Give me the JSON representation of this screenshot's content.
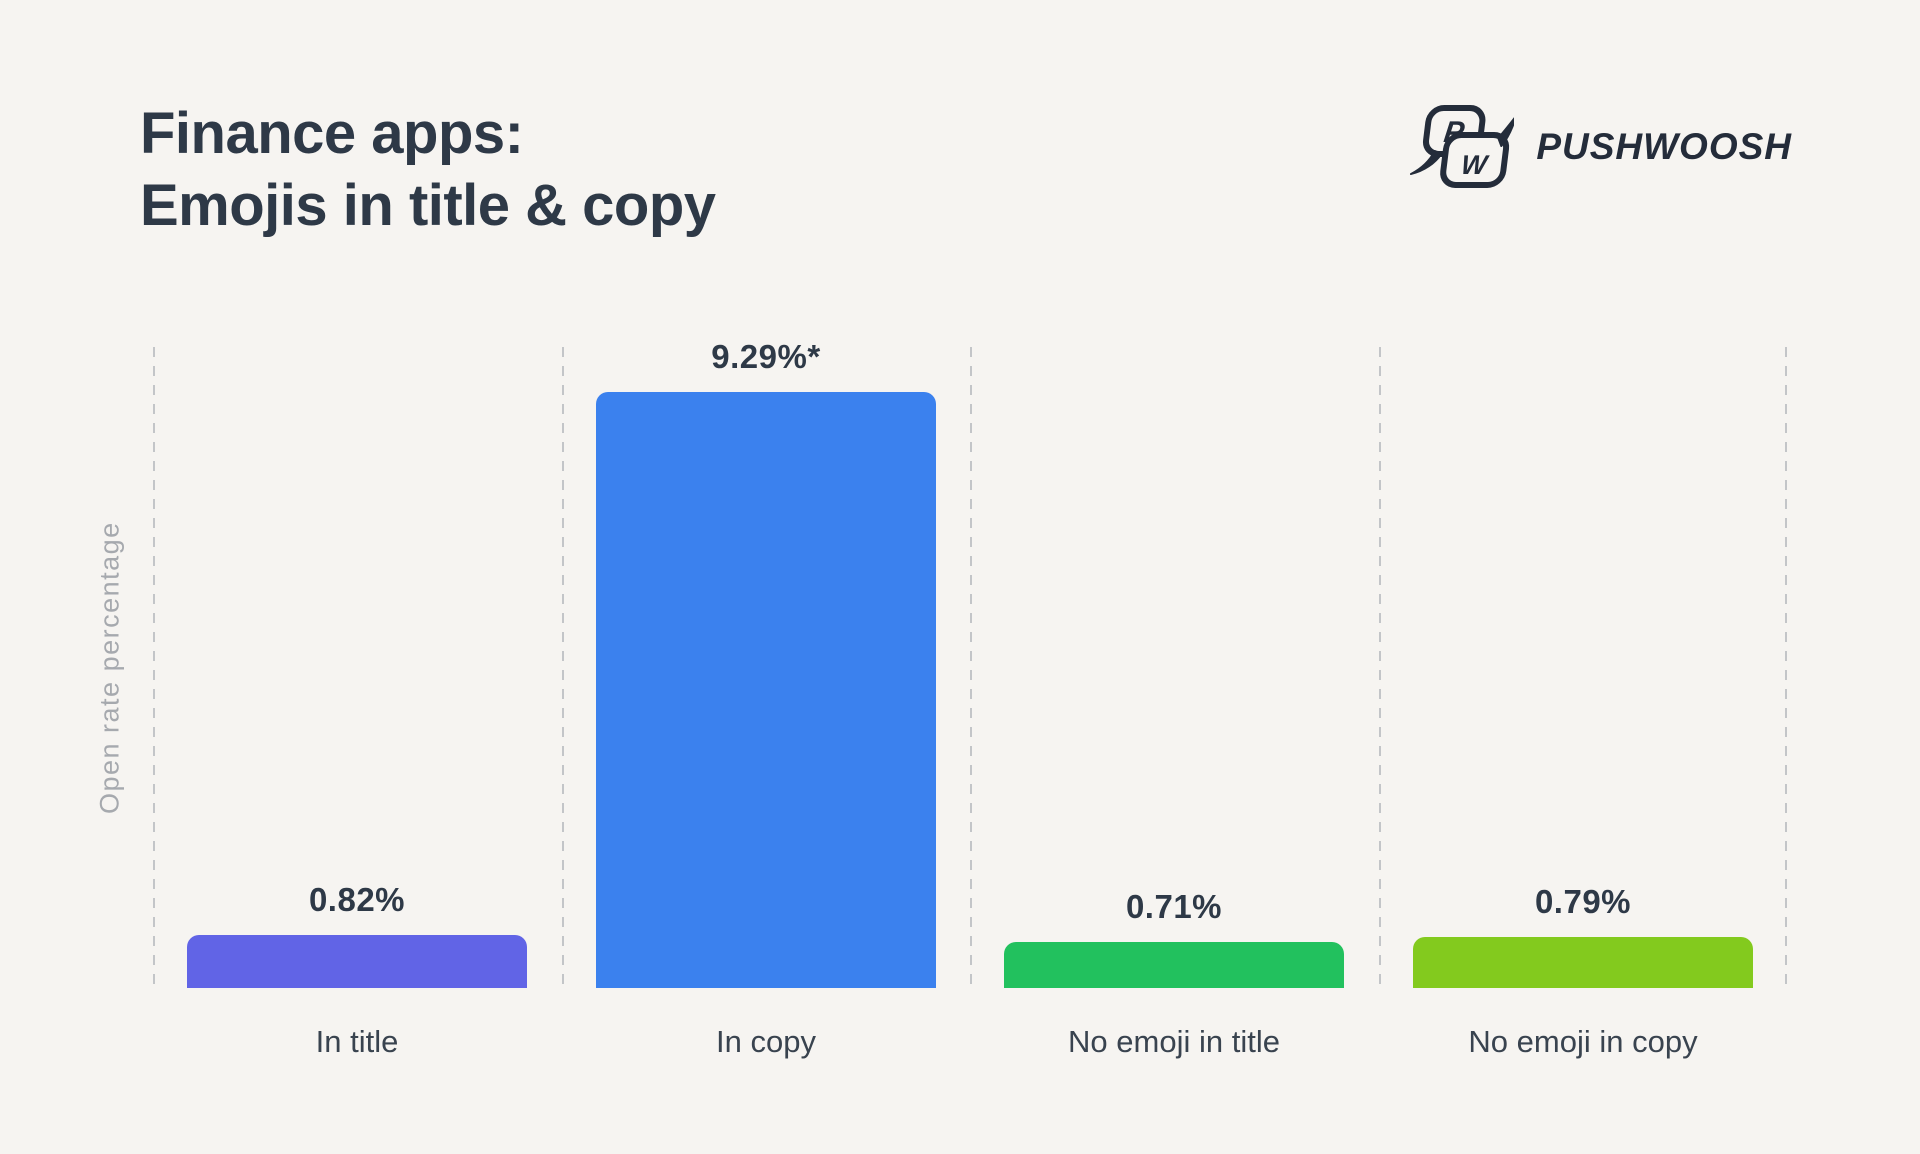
{
  "page": {
    "background": "#f6f4f1"
  },
  "header": {
    "title_line1": "Finance apps:",
    "title_line2": "Emojis in title & copy"
  },
  "logo": {
    "brand": "PUSHWOOSH",
    "icon": "two overlapping speech bubbles with letters P and W"
  },
  "colors": {
    "title_text": "#2e3947",
    "logo_text": "#242c3a",
    "axis_label_text": "#a6a9ae",
    "value_label_text": "#2e3947",
    "category_label_text": "#39434f",
    "gridline": "#c3c5c8"
  },
  "chart_data": {
    "type": "bar",
    "title": "Finance apps: Emojis in title & copy",
    "categories": [
      "In title",
      "In copy",
      "No emoji in title",
      "No emoji in copy"
    ],
    "values": [
      0.82,
      9.29,
      0.71,
      0.79
    ],
    "value_labels": [
      "0.82%",
      "9.29%*",
      "0.71%",
      "0.79%"
    ],
    "bar_colors": [
      "#6164e6",
      "#3b81ee",
      "#22c15e",
      "#83ca1e"
    ],
    "ylabel": "Open rate percentage",
    "xlabel": "",
    "ylim": [
      0,
      10
    ],
    "legend": "none",
    "grid": "dashed vertical separators between categories"
  }
}
